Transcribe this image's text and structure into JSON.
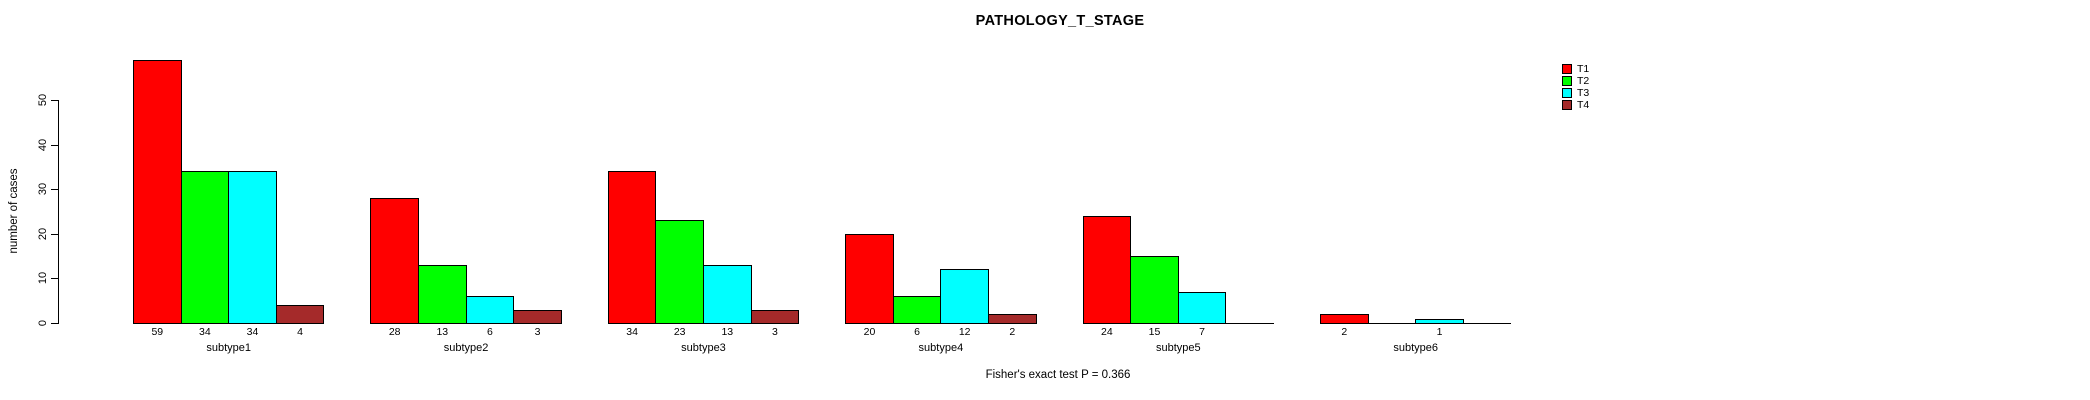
{
  "chart_data": {
    "type": "bar",
    "title": "PATHOLOGY_T_STAGE",
    "xlabel": "",
    "ylabel": "number of cases",
    "ylim": [
      0,
      59
    ],
    "yticks": [
      0,
      10,
      20,
      30,
      40,
      50
    ],
    "grid": false,
    "legend_position": "top-right",
    "categories": [
      "subtype1",
      "subtype2",
      "subtype3",
      "subtype4",
      "subtype5",
      "subtype6"
    ],
    "series": [
      {
        "name": "T1",
        "color": "#ff0000",
        "values": [
          59,
          28,
          34,
          20,
          24,
          2
        ]
      },
      {
        "name": "T2",
        "color": "#00ff00",
        "values": [
          34,
          13,
          23,
          6,
          15,
          0
        ]
      },
      {
        "name": "T3",
        "color": "#00ffff",
        "values": [
          34,
          6,
          13,
          12,
          7,
          1
        ]
      },
      {
        "name": "T4",
        "color": "#a52a2a",
        "values": [
          4,
          3,
          3,
          2,
          0,
          0
        ]
      }
    ],
    "show_value_labels": true,
    "zero_values_hidden": true,
    "annotation": "Fisher's exact test P = 0.366"
  }
}
